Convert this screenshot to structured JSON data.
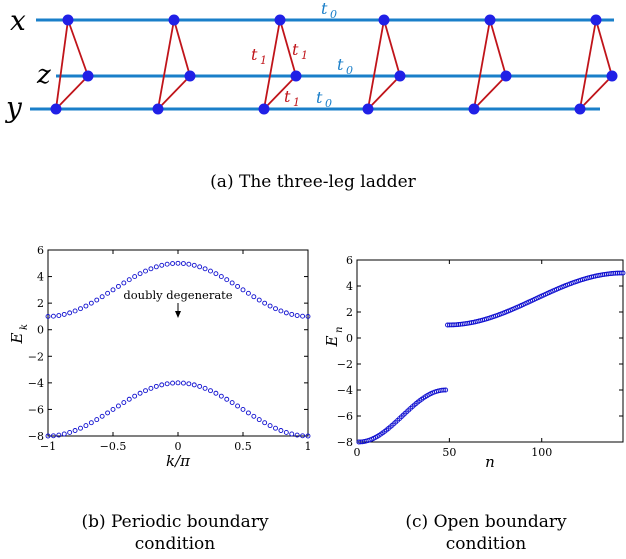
{
  "ladder": {
    "leg_labels": {
      "x": "x",
      "z": "z",
      "y": "y"
    },
    "t0_label": "t",
    "t0_sub": "0",
    "t1_label": "t",
    "t1_sub": "1",
    "caption": "(a) The three-leg ladder",
    "colors": {
      "leg": "#1a7fc9",
      "rung": "#c0141a",
      "site": "#2020e6"
    }
  },
  "panel_b": {
    "caption_line1": "(b) Periodic boundary",
    "caption_line2": "condition",
    "annotation": "doubly degenerate",
    "ylabel_main": "E",
    "ylabel_sub": "k",
    "xlabel": "k/π",
    "chart_data": {
      "type": "scatter",
      "xlim": [
        -1,
        1
      ],
      "ylim": [
        -8,
        6
      ],
      "x_ticks": [
        "−1",
        "−0.5",
        "0",
        "0.5",
        "1"
      ],
      "x_tick_values": [
        -1,
        -0.5,
        0,
        0.5,
        1
      ],
      "y_ticks": [
        "6",
        "4",
        "2",
        "0",
        "−2",
        "−4",
        "−6",
        "−8"
      ],
      "y_tick_values": [
        6,
        4,
        2,
        0,
        -2,
        -4,
        -6,
        -8
      ],
      "upper_band": {
        "formula": "3 + 2cos(πk)",
        "min": 1,
        "max": 5
      },
      "lower_band": {
        "formula": "-6 + 2cos(πk)",
        "min": -8,
        "max": -4
      },
      "points_per_band": 49,
      "marker_color": "#1010d0"
    }
  },
  "panel_c": {
    "caption_line1": "(c) Open boundary",
    "caption_line2": "condition",
    "ylabel_main": "E",
    "ylabel_sub": "n",
    "xlabel": "n",
    "chart_data": {
      "type": "scatter",
      "xlim": [
        0,
        144
      ],
      "ylim": [
        -8,
        6
      ],
      "x_ticks": [
        "0",
        "50",
        "100"
      ],
      "x_tick_values": [
        0,
        50,
        100
      ],
      "y_ticks": [
        "6",
        "4",
        "2",
        "0",
        "−2",
        "−4",
        "−6",
        "−8"
      ],
      "y_tick_values": [
        6,
        4,
        2,
        0,
        -2,
        -4,
        -6,
        -8
      ],
      "lower_branch": {
        "n_start": 1,
        "n_end": 48,
        "e_start": -8,
        "e_end": -4
      },
      "upper_branch": {
        "n_start": 49,
        "n_end": 144,
        "e_start": 1,
        "e_end": 5
      },
      "marker_color": "#1010d0"
    }
  }
}
